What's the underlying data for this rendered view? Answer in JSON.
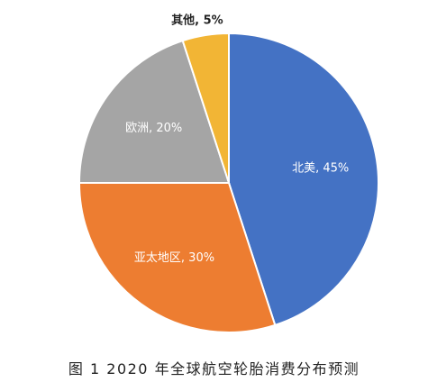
{
  "chart_data": {
    "type": "pie",
    "title": "",
    "slices": [
      {
        "name": "北美",
        "value": 45,
        "label": "北美, 45%",
        "color": "#4472C4",
        "label_color": "#ffffff",
        "label_weight": "normal"
      },
      {
        "name": "亚太地区",
        "value": 30,
        "label": "亚太地区, 30%",
        "color": "#ED7D31",
        "label_color": "#ffffff",
        "label_weight": "normal"
      },
      {
        "name": "欧洲",
        "value": 20,
        "label": "欧洲, 20%",
        "color": "#A5A5A5",
        "label_color": "#ffffff",
        "label_weight": "normal"
      },
      {
        "name": "其他",
        "value": 5,
        "label": "其他, 5%",
        "color": "#F2B535",
        "label_color": "#222222",
        "label_weight": "bold"
      }
    ],
    "start": "12 o'clock",
    "direction": "clockwise",
    "legend": "none"
  },
  "caption": "图 1  2020 年全球航空轮胎消费分布预测"
}
